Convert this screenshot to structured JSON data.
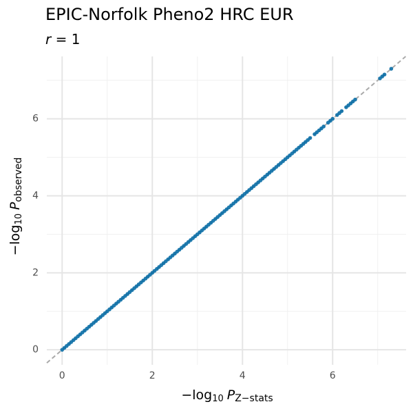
{
  "chart_data": {
    "type": "scatter",
    "title": "EPIC-Norfolk Pheno2 HRC EUR",
    "subtitle": {
      "var": "r",
      "rest": " = 1"
    },
    "xlabel": {
      "prefix": "−log",
      "sub1": "10",
      "var": "P",
      "sub2": "Z−stats"
    },
    "ylabel": {
      "prefix": "−log",
      "sub1": "10",
      "var": "P",
      "sub2": "observed"
    },
    "xlim": [
      -0.34,
      7.63
    ],
    "ylim": [
      -0.39,
      7.62
    ],
    "xticks": [
      0,
      2,
      4,
      6
    ],
    "yticks": [
      0,
      2,
      4,
      6
    ],
    "minor_xticks": [
      1,
      3,
      5,
      7
    ],
    "minor_yticks": [
      1,
      3,
      5,
      7
    ],
    "grid": true,
    "color": "#0a6ea6",
    "x": [
      0,
      0.05,
      0.1,
      0.15,
      0.2,
      0.25,
      0.3,
      0.35,
      0.4,
      0.45,
      0.5,
      0.55,
      0.6,
      0.65,
      0.7,
      0.75,
      0.8,
      0.85,
      0.9,
      0.95,
      1,
      1.05,
      1.1,
      1.15,
      1.2,
      1.25,
      1.3,
      1.35,
      1.4,
      1.45,
      1.5,
      1.55,
      1.6,
      1.65,
      1.7,
      1.75,
      1.8,
      1.85,
      1.9,
      1.95,
      2,
      2.05,
      2.1,
      2.15,
      2.2,
      2.25,
      2.3,
      2.35,
      2.4,
      2.45,
      2.5,
      2.55,
      2.6,
      2.65,
      2.7,
      2.75,
      2.8,
      2.85,
      2.9,
      2.95,
      3,
      3.05,
      3.1,
      3.15,
      3.2,
      3.25,
      3.3,
      3.35,
      3.4,
      3.45,
      3.5,
      3.55,
      3.6,
      3.65,
      3.7,
      3.75,
      3.8,
      3.85,
      3.9,
      3.95,
      4,
      4.05,
      4.1,
      4.15,
      4.2,
      4.25,
      4.3,
      4.35,
      4.4,
      4.45,
      4.5,
      4.55,
      4.6,
      4.65,
      4.7,
      4.75,
      4.8,
      4.85,
      4.9,
      4.95,
      5,
      5.05,
      5.1,
      5.15,
      5.2,
      5.25,
      5.3,
      5.35,
      5.4,
      5.45,
      5.5,
      5.6,
      5.65,
      5.7,
      5.75,
      5.8,
      5.9,
      5.95,
      6,
      6.1,
      6.15,
      6.2,
      6.3,
      6.35,
      6.4,
      6.45,
      6.5,
      7.05,
      7.1,
      7.15,
      7.3
    ],
    "y": [
      0,
      0.05,
      0.1,
      0.15,
      0.2,
      0.25,
      0.3,
      0.35,
      0.4,
      0.45,
      0.5,
      0.55,
      0.6,
      0.65,
      0.7,
      0.75,
      0.8,
      0.85,
      0.9,
      0.95,
      1,
      1.05,
      1.1,
      1.15,
      1.2,
      1.25,
      1.3,
      1.35,
      1.4,
      1.45,
      1.5,
      1.55,
      1.6,
      1.65,
      1.7,
      1.75,
      1.8,
      1.85,
      1.9,
      1.95,
      2,
      2.05,
      2.1,
      2.15,
      2.2,
      2.25,
      2.3,
      2.35,
      2.4,
      2.45,
      2.5,
      2.55,
      2.6,
      2.65,
      2.7,
      2.75,
      2.8,
      2.85,
      2.9,
      2.95,
      3,
      3.05,
      3.1,
      3.15,
      3.2,
      3.25,
      3.3,
      3.35,
      3.4,
      3.45,
      3.5,
      3.55,
      3.6,
      3.65,
      3.7,
      3.75,
      3.8,
      3.85,
      3.9,
      3.95,
      4,
      4.05,
      4.1,
      4.15,
      4.2,
      4.25,
      4.3,
      4.35,
      4.4,
      4.45,
      4.5,
      4.55,
      4.6,
      4.65,
      4.7,
      4.75,
      4.8,
      4.85,
      4.9,
      4.95,
      5,
      5.05,
      5.1,
      5.15,
      5.2,
      5.25,
      5.3,
      5.35,
      5.4,
      5.45,
      5.5,
      5.6,
      5.65,
      5.7,
      5.75,
      5.8,
      5.9,
      5.95,
      6,
      6.1,
      6.15,
      6.2,
      6.3,
      6.35,
      6.4,
      6.45,
      6.5,
      7.05,
      7.1,
      7.15,
      7.3
    ]
  }
}
